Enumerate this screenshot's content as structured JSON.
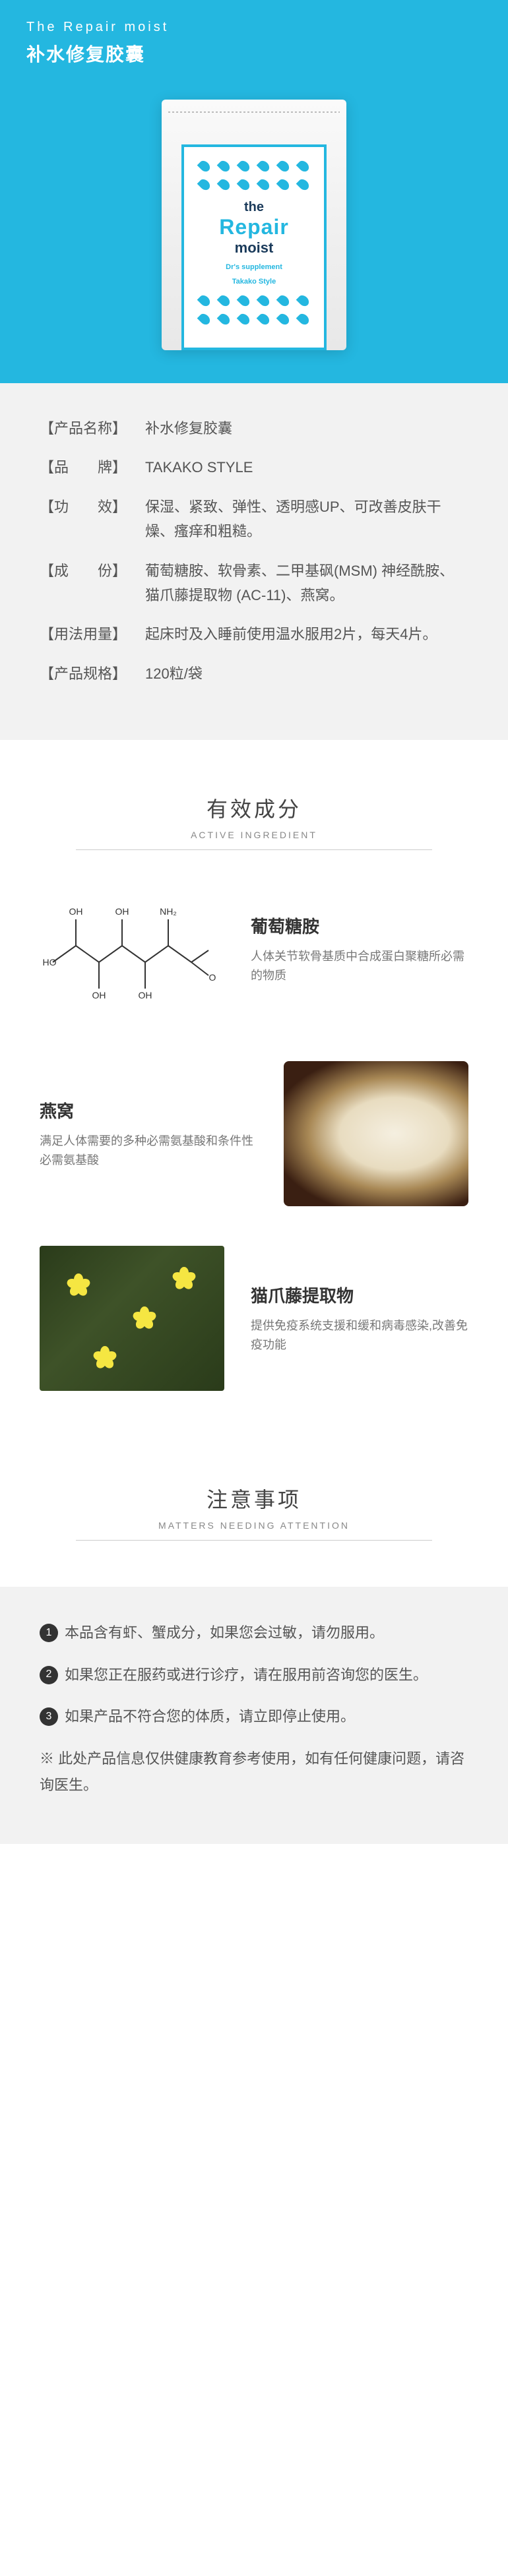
{
  "header": {
    "en": "The Repair moist",
    "cn": "补水修复胶囊"
  },
  "product_label": {
    "the": "the",
    "repair": "Repair",
    "moist": "moist",
    "sub1": "Dr's supplement",
    "sub2": "Takako Style"
  },
  "spec": [
    {
      "key": "产品名称",
      "val": "补水修复胶囊"
    },
    {
      "key": "品　　牌",
      "val": "TAKAKO STYLE"
    },
    {
      "key": "功　　效",
      "val": "保湿、紧致、弹性、透明感UP、可改善皮肤干燥、瘙痒和粗糙。"
    },
    {
      "key": "成　　份",
      "val": "葡萄糖胺、软骨素、二甲基砜(MSM) 神经酰胺、猫爪藤提取物 (AC-11)、燕窝。"
    },
    {
      "key": "用法用量",
      "val": "起床时及入睡前使用温水服用2片，每天4片。"
    },
    {
      "key": "产品规格",
      "val": "120粒/袋"
    }
  ],
  "sections": {
    "ingredient": {
      "cn": "有效成分",
      "en": "ACTIVE INGREDIENT"
    },
    "attention": {
      "cn": "注意事项",
      "en": "MATTERS NEEDING ATTENTION"
    }
  },
  "ingredients": [
    {
      "name": "葡萄糖胺",
      "desc": "人体关节软骨基质中合成蛋白聚糖所必需的物质"
    },
    {
      "name": "燕窝",
      "desc": "满足人体需要的多种必需氨基酸和条件性必需氨基酸"
    },
    {
      "name": "猫爪藤提取物",
      "desc": "提供免疫系统支援和缓和病毒感染,改善免疫功能"
    }
  ],
  "notes": [
    "本品含有虾、蟹成分，如果您会过敏，请勿服用。",
    "如果您正在服药或进行诊疗，请在服用前咨询您的医生。",
    "如果产品不符合您的体质，请立即停止使用。"
  ],
  "note_footer": "※ 此处产品信息仅供健康教育参考使用，如有任何健康问题，请咨询医生。",
  "colors": {
    "primary": "#24b7e0",
    "bg_gray": "#f2f2f2",
    "text": "#555"
  }
}
